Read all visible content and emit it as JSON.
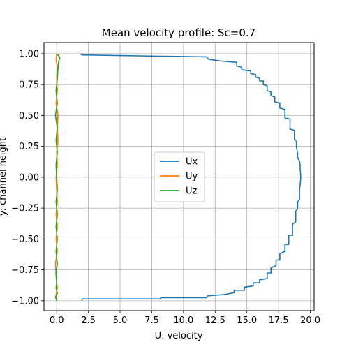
{
  "chart_data": {
    "type": "line",
    "title": "Mean velocity profile: Sc=0.7",
    "xlabel": "U: velocity",
    "ylabel": "y: channel height",
    "xlim": [
      -1.0,
      20.3
    ],
    "ylim": [
      -1.08,
      1.09
    ],
    "xticks": [
      0.0,
      2.5,
      5.0,
      7.5,
      10.0,
      12.5,
      15.0,
      17.5,
      20.0
    ],
    "xtick_labels": [
      "0.0",
      "2.5",
      "5.0",
      "7.5",
      "10.0",
      "12.5",
      "15.0",
      "17.5",
      "20.0"
    ],
    "yticks": [
      -1.0,
      -0.75,
      -0.5,
      -0.25,
      0.0,
      0.25,
      0.5,
      0.75,
      1.0
    ],
    "ytick_labels": [
      "−1.00",
      "−0.75",
      "−0.50",
      "−0.25",
      "0.00",
      "0.25",
      "0.50",
      "0.75",
      "1.00"
    ],
    "grid": true,
    "legend_position": "center",
    "series": [
      {
        "name": "Ux",
        "color": "#1f77b4",
        "points": [
          [
            2.0,
            -1.0
          ],
          [
            2.0,
            -0.985
          ],
          [
            8.2,
            -0.985
          ],
          [
            8.2,
            -0.975
          ],
          [
            11.8,
            -0.975
          ],
          [
            11.9,
            -0.96
          ],
          [
            13.2,
            -0.95
          ],
          [
            14.0,
            -0.935
          ],
          [
            14.0,
            -0.915
          ],
          [
            14.8,
            -0.915
          ],
          [
            14.8,
            -0.89
          ],
          [
            15.5,
            -0.88
          ],
          [
            15.5,
            -0.855
          ],
          [
            16.0,
            -0.855
          ],
          [
            16.0,
            -0.83
          ],
          [
            16.6,
            -0.82
          ],
          [
            16.6,
            -0.775
          ],
          [
            16.9,
            -0.775
          ],
          [
            16.9,
            -0.735
          ],
          [
            17.3,
            -0.715
          ],
          [
            17.3,
            -0.67
          ],
          [
            17.6,
            -0.67
          ],
          [
            17.6,
            -0.62
          ],
          [
            18.0,
            -0.6
          ],
          [
            18.0,
            -0.545
          ],
          [
            18.3,
            -0.545
          ],
          [
            18.3,
            -0.47
          ],
          [
            18.6,
            -0.47
          ],
          [
            18.6,
            -0.38
          ],
          [
            18.85,
            -0.36
          ],
          [
            18.85,
            -0.275
          ],
          [
            19.0,
            -0.255
          ],
          [
            19.0,
            -0.2
          ],
          [
            19.15,
            -0.18
          ],
          [
            19.15,
            -0.1
          ],
          [
            19.2,
            -0.06
          ],
          [
            19.25,
            0.0
          ],
          [
            19.2,
            0.07
          ],
          [
            19.2,
            0.1
          ],
          [
            19.15,
            0.13
          ],
          [
            19.0,
            0.16
          ],
          [
            19.0,
            0.19
          ],
          [
            18.9,
            0.25
          ],
          [
            18.9,
            0.29
          ],
          [
            18.75,
            0.31
          ],
          [
            18.75,
            0.38
          ],
          [
            18.4,
            0.39
          ],
          [
            18.4,
            0.47
          ],
          [
            18.0,
            0.48
          ],
          [
            18.0,
            0.55
          ],
          [
            17.6,
            0.56
          ],
          [
            17.6,
            0.6
          ],
          [
            17.2,
            0.61
          ],
          [
            17.2,
            0.65
          ],
          [
            16.9,
            0.66
          ],
          [
            16.9,
            0.69
          ],
          [
            16.6,
            0.7
          ],
          [
            16.6,
            0.74
          ],
          [
            16.3,
            0.75
          ],
          [
            16.3,
            0.78
          ],
          [
            16.0,
            0.78
          ],
          [
            16.0,
            0.8
          ],
          [
            15.7,
            0.81
          ],
          [
            15.7,
            0.83
          ],
          [
            15.3,
            0.84
          ],
          [
            15.3,
            0.86
          ],
          [
            14.6,
            0.87
          ],
          [
            14.6,
            0.89
          ],
          [
            14.2,
            0.9
          ],
          [
            14.2,
            0.93
          ],
          [
            13.0,
            0.94
          ],
          [
            12.0,
            0.955
          ],
          [
            11.8,
            0.975
          ],
          [
            8.2,
            0.98
          ],
          [
            2.0,
            0.99
          ],
          [
            1.9,
            1.0
          ]
        ]
      },
      {
        "name": "Uy",
        "color": "#ff7f0e",
        "points": [
          [
            0.0,
            -1.0
          ],
          [
            -0.05,
            -0.95
          ],
          [
            0.05,
            -0.9
          ],
          [
            -0.05,
            -0.8
          ],
          [
            -0.1,
            -0.7
          ],
          [
            0.05,
            -0.6
          ],
          [
            -0.05,
            -0.5
          ],
          [
            0.05,
            -0.4
          ],
          [
            -0.05,
            -0.3
          ],
          [
            0.05,
            -0.2
          ],
          [
            0.0,
            -0.1
          ],
          [
            -0.05,
            0.0
          ],
          [
            0.05,
            0.1
          ],
          [
            0.0,
            0.2
          ],
          [
            0.1,
            0.3
          ],
          [
            0.05,
            0.4
          ],
          [
            0.1,
            0.5
          ],
          [
            -0.05,
            0.6
          ],
          [
            0.05,
            0.7
          ],
          [
            0.0,
            0.8
          ],
          [
            0.05,
            0.9
          ],
          [
            -0.05,
            0.95
          ],
          [
            0.0,
            1.0
          ]
        ]
      },
      {
        "name": "Uz",
        "color": "#2ca02c",
        "points": [
          [
            0.0,
            -1.0
          ],
          [
            -0.1,
            -0.97
          ],
          [
            0.05,
            -0.94
          ],
          [
            -0.05,
            -0.9
          ],
          [
            0.0,
            -0.85
          ],
          [
            -0.05,
            -0.78
          ],
          [
            0.05,
            -0.7
          ],
          [
            -0.05,
            -0.6
          ],
          [
            0.05,
            -0.5
          ],
          [
            -0.05,
            -0.4
          ],
          [
            0.05,
            -0.3
          ],
          [
            -0.05,
            -0.2
          ],
          [
            0.05,
            -0.1
          ],
          [
            0.0,
            0.0
          ],
          [
            -0.05,
            0.1
          ],
          [
            0.05,
            0.2
          ],
          [
            -0.05,
            0.3
          ],
          [
            0.05,
            0.4
          ],
          [
            -0.1,
            0.5
          ],
          [
            0.05,
            0.6
          ],
          [
            -0.05,
            0.7
          ],
          [
            0.05,
            0.8
          ],
          [
            0.1,
            0.88
          ],
          [
            0.15,
            0.93
          ],
          [
            0.25,
            0.97
          ],
          [
            0.1,
            0.99
          ],
          [
            0.0,
            1.0
          ]
        ]
      }
    ]
  }
}
